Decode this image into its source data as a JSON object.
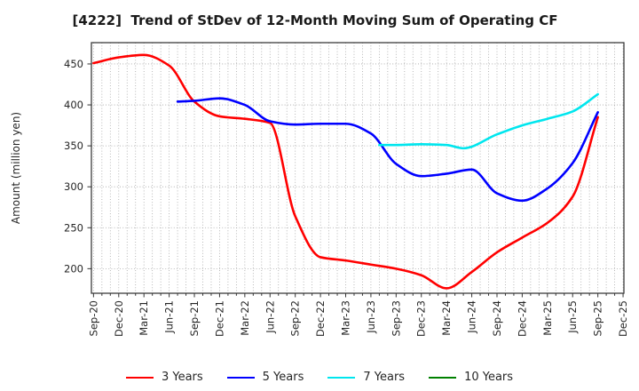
{
  "figure": {
    "title": "[4222]  Trend of StDev of 12-Month Moving Sum of Operating CF",
    "ylabel": "Amount (million yen)"
  },
  "chart_data": {
    "type": "line",
    "title": "[4222]  Trend of StDev of 12-Month Moving Sum of Operating CF",
    "xlabel": "",
    "ylabel": "Amount (million yen)",
    "x_unit": "months since Sep-2020",
    "xlim": [
      -0.25,
      63.1
    ],
    "ylim": [
      170,
      476
    ],
    "y_ticks": [
      200,
      250,
      300,
      350,
      400,
      450
    ],
    "x_tick_months": [
      0,
      3,
      6,
      9,
      12,
      15,
      18,
      21,
      24,
      27,
      30,
      33,
      36,
      39,
      42,
      45,
      48,
      51,
      54,
      57,
      60,
      63
    ],
    "x_tick_labels": [
      "Sep-20",
      "Dec-20",
      "Mar-21",
      "Jun-21",
      "Sep-21",
      "Dec-21",
      "Mar-22",
      "Jun-22",
      "Sep-22",
      "Dec-22",
      "Mar-23",
      "Jun-23",
      "Sep-23",
      "Dec-23",
      "Mar-24",
      "Jun-24",
      "Sep-24",
      "Dec-24",
      "Mar-25",
      "Jun-25",
      "Sep-25",
      "Dec-25"
    ],
    "grid": {
      "show": true,
      "vertical_every_month": true,
      "horizontal_at_y_ticks": true,
      "style": "dotted"
    },
    "legend_position": "bottom-center",
    "series": [
      {
        "name": "3 Years",
        "color": "#ff0000",
        "points": [
          [
            0,
            451
          ],
          [
            3,
            458
          ],
          [
            6,
            461
          ],
          [
            9,
            448
          ],
          [
            12,
            404
          ],
          [
            15,
            386
          ],
          [
            18,
            383
          ],
          [
            21,
            378
          ],
          [
            24,
            264
          ],
          [
            27,
            214
          ],
          [
            30,
            210
          ],
          [
            33,
            205
          ],
          [
            36,
            200
          ],
          [
            39,
            192
          ],
          [
            42,
            176
          ],
          [
            45,
            196
          ],
          [
            48,
            220
          ],
          [
            51,
            238
          ],
          [
            54,
            256
          ],
          [
            57,
            288
          ],
          [
            60,
            385
          ]
        ]
      },
      {
        "name": "5 Years",
        "color": "#0000ff",
        "points": [
          [
            10,
            404
          ],
          [
            12,
            405
          ],
          [
            15,
            408
          ],
          [
            18,
            400
          ],
          [
            21,
            380
          ],
          [
            24,
            376
          ],
          [
            27,
            377
          ],
          [
            30,
            377
          ],
          [
            33,
            365
          ],
          [
            36,
            328
          ],
          [
            39,
            313
          ],
          [
            42,
            316
          ],
          [
            45,
            321
          ],
          [
            48,
            292
          ],
          [
            51,
            283
          ],
          [
            54,
            298
          ],
          [
            57,
            329
          ],
          [
            60,
            391
          ]
        ]
      },
      {
        "name": "7 Years",
        "color": "#00e6ee",
        "points": [
          [
            34,
            351
          ],
          [
            36,
            351
          ],
          [
            39,
            352
          ],
          [
            42,
            351
          ],
          [
            44,
            347
          ],
          [
            48,
            364
          ],
          [
            51,
            375
          ],
          [
            54,
            383
          ],
          [
            57,
            392
          ],
          [
            60,
            413
          ]
        ]
      },
      {
        "name": "10 Years",
        "color": "#008000",
        "points": []
      }
    ]
  },
  "style": {
    "border_color": "#3c3c3c",
    "grid_color": "#a6a6a6",
    "tick_color": "#333333",
    "tick_label_color": "#262626",
    "line_width": 2.6
  }
}
